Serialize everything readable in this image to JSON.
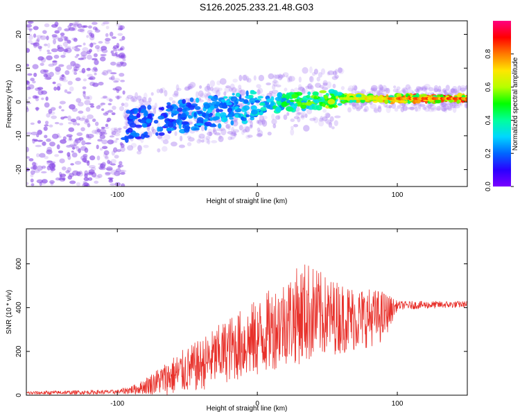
{
  "title": "S126.2025.233.21.48.G03",
  "colors": {
    "snr_line": "#e8312b",
    "scatter_base": "#8a4de6",
    "colorbar": [
      "#7a00ff",
      "#2a00ff",
      "#0066ff",
      "#00d7ff",
      "#00ff9c",
      "#00ff00",
      "#b6ff00",
      "#ffe600",
      "#ff7a00",
      "#ff0000",
      "#ff0080"
    ]
  },
  "chart_data": [
    {
      "type": "heatmap",
      "name": "spectrogram",
      "xlabel": "Height of straight line (km)",
      "ylabel": "Frequency (Hz)",
      "xlim": [
        -165,
        150
      ],
      "ylim": [
        -25,
        24
      ],
      "xticks": [
        -100,
        0,
        100
      ],
      "xtick_labels": [
        "-100",
        "0",
        "100"
      ],
      "yticks": [
        -20,
        -10,
        0,
        10,
        20
      ],
      "ytick_labels": [
        "-20",
        "-10",
        "0",
        "10",
        "20"
      ],
      "colorbar": {
        "label": "Normalized spectral amplitude",
        "range": [
          0,
          1
        ],
        "ticks": [
          0,
          0.2,
          0.4,
          0.6,
          0.8
        ],
        "tick_labels": [
          "0.0",
          "0.2",
          "0.4",
          "0.6",
          "0.8"
        ]
      },
      "ridge": {
        "description_points_x": [
          -95,
          -50,
          0,
          50,
          100,
          145
        ],
        "center_frequency_hz": [
          -7,
          -4,
          -1,
          1,
          1,
          1
        ],
        "peak_amplitude": [
          0.2,
          0.25,
          0.35,
          0.6,
          0.8,
          0.85
        ]
      }
    },
    {
      "type": "line",
      "name": "snr",
      "xlabel": "Height of straight line (km)",
      "ylabel": "SNR (10 * v/v)",
      "xlim": [
        -165,
        150
      ],
      "ylim": [
        0,
        760
      ],
      "xticks": [
        -100,
        0,
        100
      ],
      "xtick_labels": [
        "-100",
        "0",
        "100"
      ],
      "yticks": [
        0,
        200,
        400,
        600
      ],
      "ytick_labels": [
        "0",
        "200",
        "400",
        "600"
      ],
      "envelope": {
        "x": [
          -165,
          -100,
          -85,
          -60,
          -40,
          -20,
          0,
          20,
          35,
          50,
          70,
          90,
          100,
          150
        ],
        "mean": [
          10,
          15,
          30,
          90,
          140,
          210,
          260,
          340,
          380,
          360,
          350,
          360,
          410,
          415
        ],
        "spread": [
          8,
          10,
          25,
          90,
          120,
          150,
          180,
          200,
          240,
          180,
          150,
          120,
          20,
          15
        ]
      }
    }
  ]
}
